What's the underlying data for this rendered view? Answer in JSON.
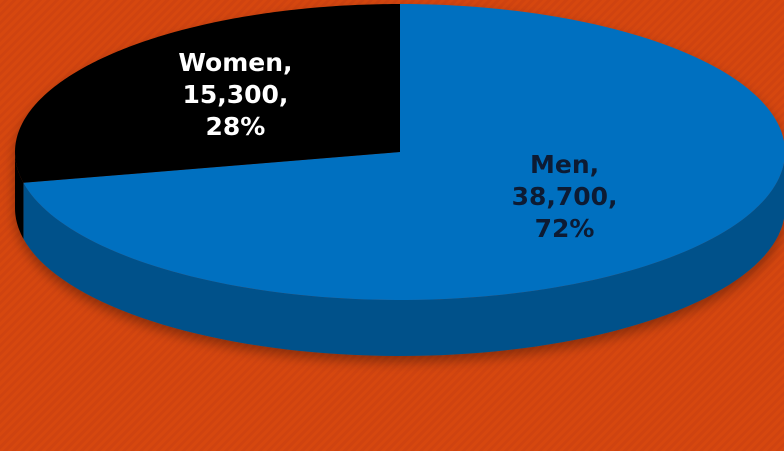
{
  "chart_data": {
    "type": "pie3d",
    "categories": [
      "Men",
      "Women"
    ],
    "values": [
      38700,
      15300
    ],
    "value_labels": [
      "38,700",
      "15,300"
    ],
    "percent_labels": [
      "72%",
      "28%"
    ],
    "separator": ",",
    "colors": [
      "#0070c0",
      "#000000"
    ],
    "label_colors": [
      "#0d1b33",
      "#ffffff"
    ]
  }
}
